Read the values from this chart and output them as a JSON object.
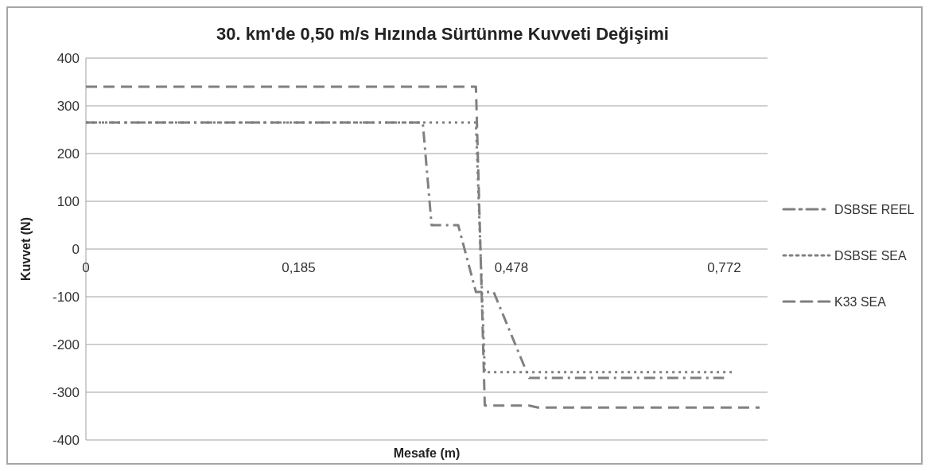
{
  "chart_data": {
    "type": "line",
    "title": "30. km'de 0,50 m/s Hızında Sürtünme Kuvveti Değişimi",
    "xlabel": "Mesafe (m)",
    "ylabel": "Kuvvet (N)",
    "categories": [
      "0",
      null,
      null,
      null,
      null,
      null,
      null,
      null,
      null,
      null,
      null,
      null,
      null,
      null,
      null,
      null,
      null,
      null,
      null,
      null,
      null,
      null,
      null,
      null,
      "0,185",
      null,
      null,
      null,
      null,
      null,
      null,
      null,
      null,
      null,
      null,
      null,
      null,
      null,
      null,
      null,
      null,
      null,
      null,
      null,
      null,
      null,
      null,
      null,
      "0,478",
      null,
      null,
      null,
      null,
      null,
      null,
      null,
      null,
      null,
      null,
      null,
      null,
      null,
      null,
      null,
      null,
      null,
      null,
      null,
      null,
      null,
      null,
      null,
      "0,772",
      null,
      null,
      null,
      null
    ],
    "series": [
      {
        "name": "DSBSE REEL",
        "color": "#808080",
        "line_style": "dashdot",
        "values": [
          265,
          265,
          265,
          265,
          265,
          265,
          265,
          265,
          265,
          265,
          265,
          265,
          265,
          265,
          265,
          265,
          265,
          265,
          265,
          265,
          265,
          265,
          265,
          265,
          265,
          265,
          265,
          265,
          265,
          265,
          265,
          265,
          265,
          265,
          265,
          265,
          265,
          265,
          265,
          50,
          50,
          50,
          50,
          -20,
          -90,
          -90,
          -90,
          -135,
          -180,
          -225,
          -270,
          -270,
          -270,
          -270,
          -270,
          -270,
          -270,
          -270,
          -270,
          -270,
          -270,
          -270,
          -270,
          -270,
          -270,
          -270,
          -270,
          -270,
          -270,
          -270,
          -270,
          -270,
          -270,
          null,
          null,
          null,
          null
        ]
      },
      {
        "name": "DSBSE SEA",
        "color": "#808080",
        "line_style": "dotted",
        "values": [
          265,
          265,
          265,
          265,
          265,
          265,
          265,
          265,
          265,
          265,
          265,
          265,
          265,
          265,
          265,
          265,
          265,
          265,
          265,
          265,
          265,
          265,
          265,
          265,
          265,
          265,
          265,
          265,
          265,
          265,
          265,
          265,
          265,
          265,
          265,
          265,
          265,
          265,
          265,
          265,
          265,
          265,
          265,
          265,
          265,
          -258,
          -258,
          -258,
          -258,
          -258,
          -258,
          -258,
          -258,
          -258,
          -258,
          -258,
          -258,
          -258,
          -258,
          -258,
          -258,
          -258,
          -258,
          -258,
          -258,
          -258,
          -258,
          -258,
          -258,
          -258,
          -258,
          -258,
          -258,
          -258,
          null,
          null,
          null
        ]
      },
      {
        "name": "K33 SEA",
        "color": "#808080",
        "line_style": "dashed",
        "values": [
          340,
          340,
          340,
          340,
          340,
          340,
          340,
          340,
          340,
          340,
          340,
          340,
          340,
          340,
          340,
          340,
          340,
          340,
          340,
          340,
          340,
          340,
          340,
          340,
          340,
          340,
          340,
          340,
          340,
          340,
          340,
          340,
          340,
          340,
          340,
          340,
          340,
          340,
          340,
          340,
          340,
          340,
          340,
          340,
          340,
          -328,
          -328,
          -328,
          -328,
          -328,
          -328,
          -332,
          -332,
          -332,
          -332,
          -332,
          -332,
          -332,
          -332,
          -332,
          -332,
          -332,
          -332,
          -332,
          -332,
          -332,
          -332,
          -332,
          -332,
          -332,
          -332,
          -332,
          -332,
          -332,
          -332,
          -332,
          -332
        ]
      }
    ],
    "ylim": [
      -400,
      400
    ],
    "yticks": [
      -400,
      -300,
      -200,
      -100,
      0,
      100,
      200,
      300,
      400
    ],
    "grid": "y",
    "legend": "right"
  }
}
